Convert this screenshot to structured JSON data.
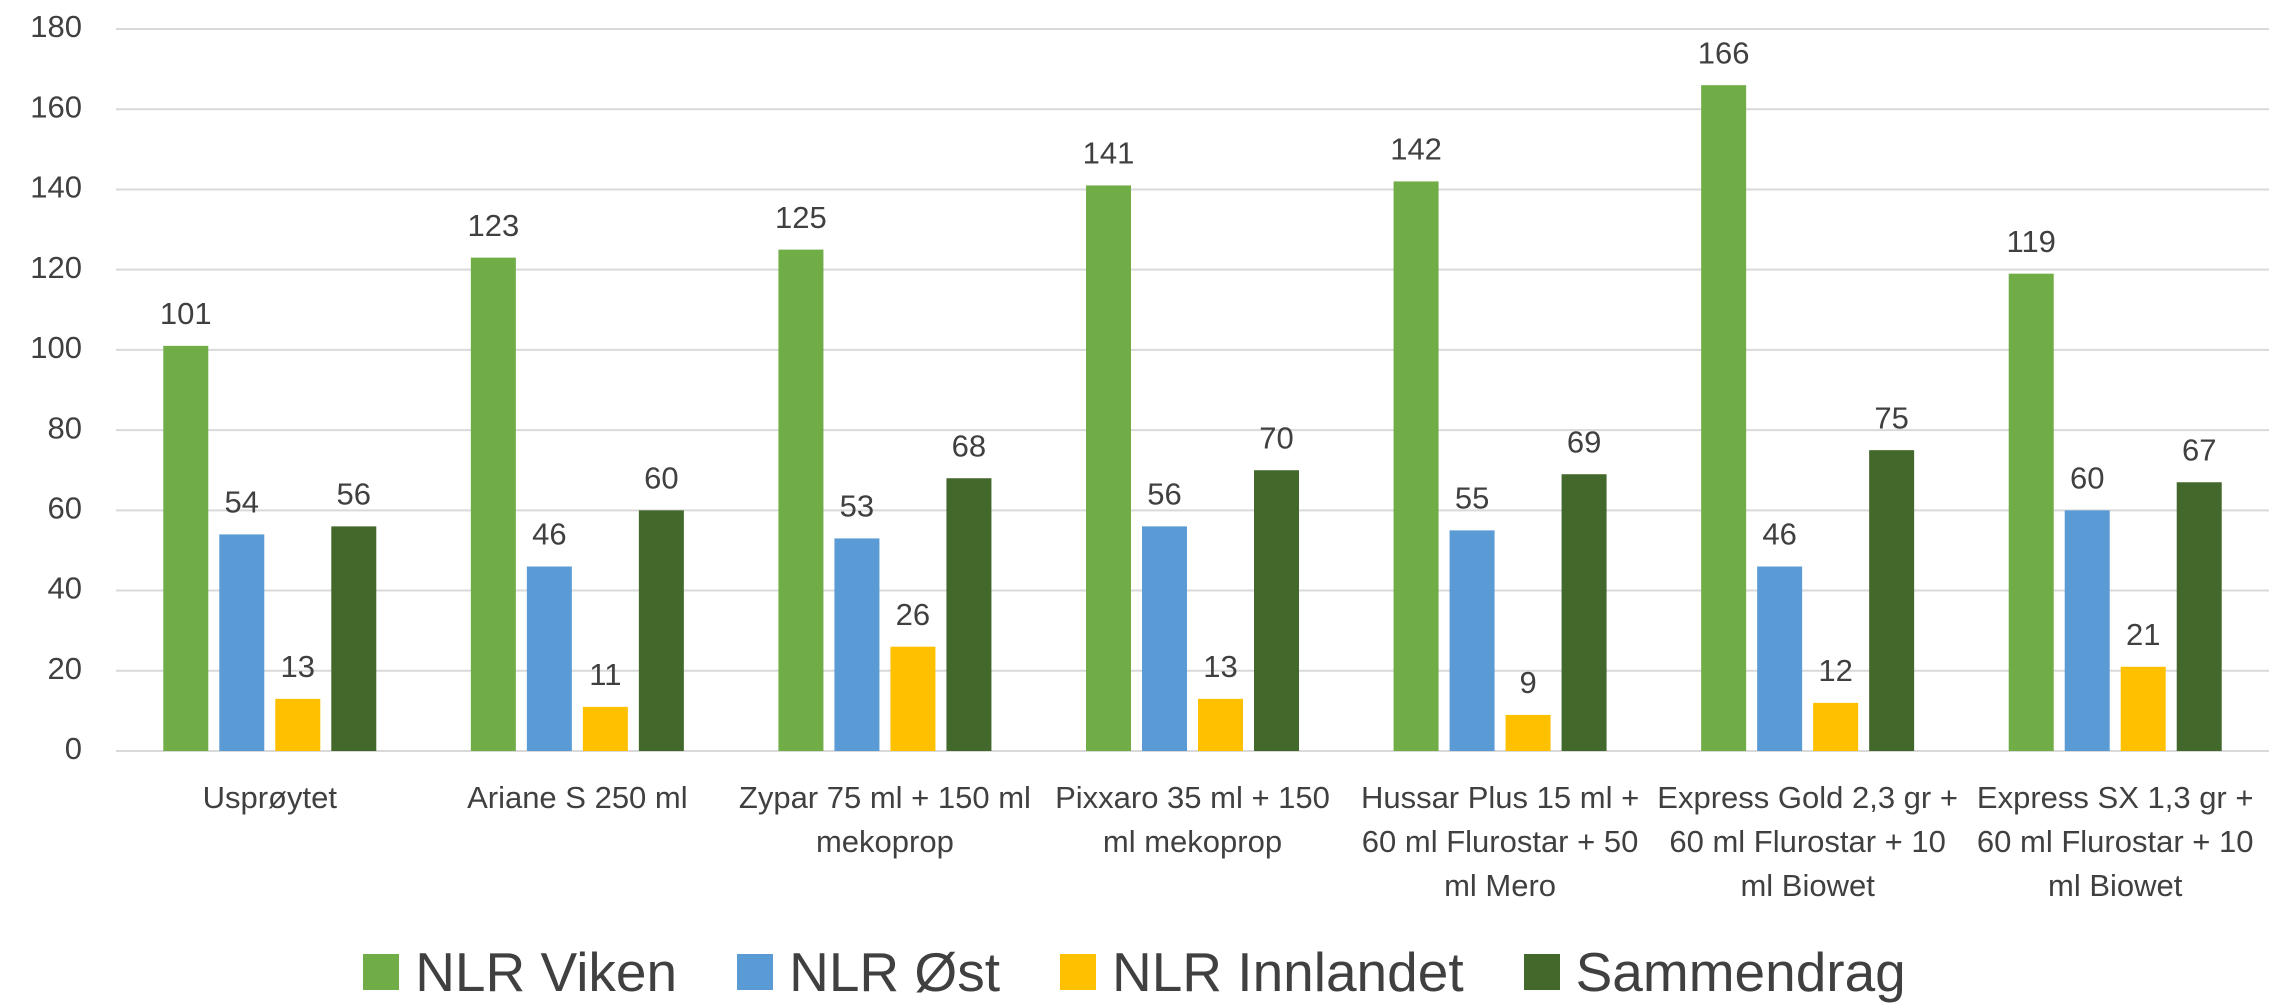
{
  "chart_data": {
    "type": "bar",
    "categories": [
      "Usprøytet",
      "Ariane S 250 ml",
      "Zypar 75 ml + 150 ml mekoprop",
      "Pixxaro 35 ml + 150 ml mekoprop",
      "Hussar Plus 15 ml + 60 ml Flurostar + 50 ml Mero",
      "Express Gold 2,3 gr + 60 ml Flurostar + 10 ml Biowet",
      "Express SX 1,3 gr + 60 ml Flurostar + 10 ml Biowet"
    ],
    "series": [
      {
        "name": "NLR Viken",
        "color": "#70ad47",
        "values": [
          101,
          123,
          125,
          141,
          142,
          166,
          119
        ]
      },
      {
        "name": "NLR Øst",
        "color": "#5b9bd5",
        "values": [
          54,
          46,
          53,
          56,
          55,
          46,
          60
        ]
      },
      {
        "name": "NLR Innlandet",
        "color": "#ffc000",
        "values": [
          13,
          11,
          26,
          13,
          9,
          12,
          21
        ]
      },
      {
        "name": "Sammendrag",
        "color": "#43682b",
        "values": [
          56,
          60,
          68,
          70,
          69,
          75,
          67
        ]
      }
    ],
    "ylim": [
      0,
      180
    ],
    "yticks": [
      0,
      20,
      40,
      60,
      80,
      100,
      120,
      140,
      160,
      180
    ],
    "grid": true,
    "legend": "bottom"
  }
}
